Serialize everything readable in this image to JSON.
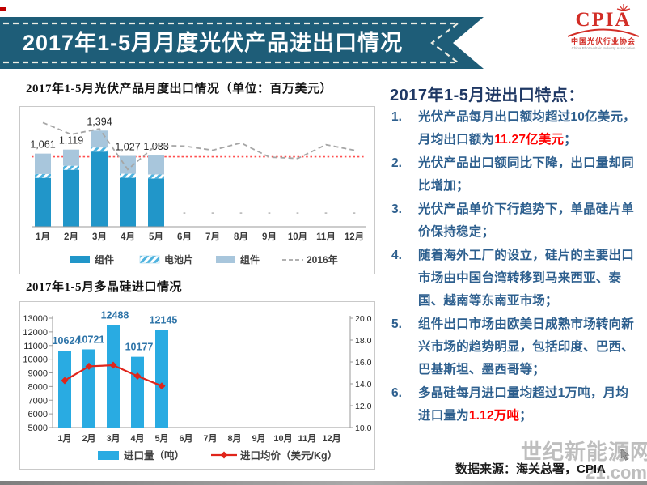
{
  "banner": {
    "title": "2017年1-5月月度光伏产品进出口情况",
    "bg_color": "#1E5D78",
    "dash_color": "#EDEDE3"
  },
  "logo": {
    "acronym": "CPIA",
    "name_cn": "中国光伏行业协会",
    "name_en": "China Photovoltaic Industry Association",
    "color": "#D22D26"
  },
  "chart_data": [
    {
      "type": "bar",
      "variant": "stacked-bars-with-comparison-line",
      "title": "2017年1-5月光伏产品月度出口情况（单位：百万美元）",
      "categories": [
        "1月",
        "2月",
        "3月",
        "4月",
        "5月",
        "6月",
        "7月",
        "8月",
        "9月",
        "10月",
        "11月",
        "12月"
      ],
      "series": [
        {
          "name": "组件",
          "kind": "bar",
          "color": "#2196C9",
          "values": [
            709,
            826,
            1090,
            710,
            700,
            null,
            null,
            null,
            null,
            null,
            null,
            null
          ]
        },
        {
          "name": "电池片",
          "kind": "bar",
          "color": "hatch",
          "hatch_color": "#4FB3DF",
          "values": [
            55,
            59,
            59,
            58,
            58,
            null,
            null,
            null,
            null,
            null,
            null,
            null
          ]
        },
        {
          "name": "组件",
          "kind": "bar",
          "color": "#A8C6DC",
          "values": [
            297,
            234,
            245,
            259,
            275,
            null,
            null,
            null,
            null,
            null,
            null,
            null
          ]
        },
        {
          "name": "2016年",
          "kind": "line",
          "color": "#A6A6A6",
          "dashed": true,
          "values": [
            1510,
            1340,
            1420,
            830,
            1180,
            1170,
            1110,
            1215,
            1010,
            990,
            1190,
            1110
          ]
        }
      ],
      "totals": [
        1061,
        1119,
        1394,
        1027,
        1033
      ],
      "total_labels": [
        "1,061",
        "1,119",
        "1,394",
        "1,027",
        "1,033"
      ],
      "reference_line": {
        "value": 1015,
        "color": "#FF4F4F",
        "style": "dotted"
      },
      "missing_marker": "-",
      "ylim": [
        0,
        1550
      ],
      "grid": false,
      "y_axis_visible": false,
      "legend_position": "bottom"
    },
    {
      "type": "bar",
      "variant": "bars-with-line-dual-axis",
      "title": "2017年1-5月多晶硅进口情况",
      "categories": [
        "1月",
        "2月",
        "3月",
        "4月",
        "5月",
        "6月",
        "7月",
        "8月",
        "9月",
        "10月",
        "11月",
        "12月"
      ],
      "bar_series": {
        "name": "进口量（吨）",
        "color": "#29ABE2",
        "values": [
          10624,
          10721,
          12488,
          10177,
          12145,
          null,
          null,
          null,
          null,
          null,
          null,
          null
        ]
      },
      "bar_labels": [
        "10624",
        "10721",
        "12488",
        "10177",
        "12145"
      ],
      "line_series": {
        "name": "进口均价（美元/Kg）",
        "color": "#E0251B",
        "marker": "diamond",
        "values": [
          14.3,
          15.6,
          15.7,
          14.7,
          13.8,
          null,
          null,
          null,
          null,
          null,
          null,
          null
        ]
      },
      "left_axis": {
        "min": 5000,
        "max": 13000,
        "step": 1000,
        "ticks": [
          "5000",
          "6000",
          "7000",
          "8000",
          "9000",
          "10000",
          "11000",
          "12000",
          "13000"
        ]
      },
      "right_axis": {
        "min": 10,
        "max": 20,
        "step": 2,
        "ticks": [
          "10.0",
          "12.0",
          "14.0",
          "16.0",
          "18.0",
          "20.0"
        ]
      },
      "label_color": "#2E74A8",
      "grid": false,
      "legend_position": "bottom"
    }
  ],
  "highlights": {
    "heading": "2017年1-5月进出口特点：",
    "heading_color": "#1F3864",
    "text_color": "#2D5F8E",
    "accent_color": "#FF0000",
    "items": [
      {
        "num": "1.",
        "pre": "光伏产品每月出口额均超过10亿美元，月均出口额为",
        "hot": "11.27亿美元",
        "post": "；"
      },
      {
        "num": "2.",
        "pre": "光伏产品出口额同比下降，出口量却同比增加；",
        "hot": "",
        "post": ""
      },
      {
        "num": "3.",
        "pre": "光伏产品单价下行趋势下，单晶硅片单价保持稳定；",
        "hot": "",
        "post": ""
      },
      {
        "num": "4.",
        "pre": "随着海外工厂的设立，硅片的主要出口市场由中国台湾转移到马来西亚、泰国、越南等东南亚市场；",
        "hot": "",
        "post": ""
      },
      {
        "num": "5.",
        "pre": "组件出口市场由欧美日成熟市场转向新兴市场的趋势明显，包括印度、巴西、巴基斯坦、墨西哥等；",
        "hot": "",
        "post": ""
      },
      {
        "num": "6.",
        "pre": "多晶硅每月进口量均超过1万吨，月均进口量为",
        "hot": "1.12万吨",
        "post": "；"
      }
    ]
  },
  "footer": {
    "source": "数据来源：海关总署，CPIA",
    "watermark_line1": "世纪新能源网",
    "watermark_line2": "21.com"
  }
}
